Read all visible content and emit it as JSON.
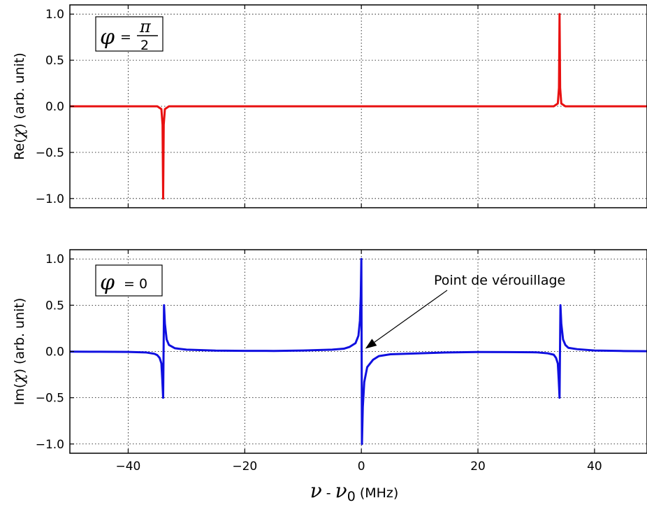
{
  "chart_data": [
    {
      "type": "line",
      "ylabel_prefix": "Re(",
      "ylabel_symbol": "χ",
      "ylabel_suffix": ") (arb. unit)",
      "xlim": [
        -50,
        49
      ],
      "ylim": [
        -1.1,
        1.1
      ],
      "xticks": [
        -40,
        -20,
        0,
        20,
        40
      ],
      "yticks": [
        -1.0,
        -0.5,
        0.0,
        0.5,
        1.0
      ],
      "ytick_labels": [
        "−1.0",
        "−0.5",
        "0.0",
        "0.5",
        "1.0"
      ],
      "grid": true,
      "color": "#e81010",
      "phase_label": {
        "symbol": "φ",
        "equals": "=",
        "numerator": "π",
        "denominator": "2"
      },
      "series": [
        {
          "x": [
            -50,
            -35,
            -34.3,
            -34.1,
            -34.0,
            -33.9,
            -33.7,
            -33,
            33,
            33.7,
            33.9,
            34.0,
            34.1,
            34.3,
            35,
            49
          ],
          "y": [
            0.0,
            0.0,
            -0.03,
            -0.2,
            -1.0,
            -0.2,
            -0.03,
            0.0,
            0.0,
            0.03,
            0.2,
            1.0,
            0.2,
            0.03,
            0.0,
            0.0
          ]
        }
      ]
    },
    {
      "type": "line",
      "ylabel_prefix": "Im(",
      "ylabel_symbol": "χ",
      "ylabel_suffix": ") (arb. unit)",
      "xlim": [
        -50,
        49
      ],
      "ylim": [
        -1.1,
        1.1
      ],
      "xticks": [
        -40,
        -20,
        0,
        20,
        40
      ],
      "xtick_labels": [
        "−40",
        "−20",
        "0",
        "20",
        "40"
      ],
      "yticks": [
        -1.0,
        -0.5,
        0.0,
        0.5,
        1.0
      ],
      "ytick_labels": [
        "−1.0",
        "−0.5",
        "0.0",
        "0.5",
        "1.0"
      ],
      "grid": true,
      "color": "#1010e0",
      "phase_label": {
        "symbol": "φ",
        "equals": "= 0"
      },
      "annotation": {
        "text": "Point de vérouillage",
        "point": [
          0.2,
          0.0
        ]
      },
      "series": [
        {
          "x": [
            -50,
            -45,
            -40,
            -37,
            -35.5,
            -35,
            -34.6,
            -34.3,
            -34.15,
            -34.0,
            -33.85,
            -33.7,
            -33.4,
            -33,
            -32,
            -30,
            -25,
            -20,
            -15,
            -10,
            -5,
            -3,
            -2,
            -1,
            -0.5,
            -0.25,
            -0.1,
            0.0,
            0.1,
            0.25,
            0.5,
            1,
            2,
            3,
            5,
            10,
            15,
            20,
            25,
            30,
            32,
            33,
            33.4,
            33.7,
            33.85,
            34.0,
            34.15,
            34.3,
            34.6,
            35,
            35.5,
            37,
            40,
            45,
            49
          ],
          "y": [
            -0.002,
            -0.003,
            -0.005,
            -0.01,
            -0.025,
            -0.04,
            -0.07,
            -0.13,
            -0.3,
            -0.5,
            0.5,
            0.3,
            0.13,
            0.07,
            0.035,
            0.02,
            0.009,
            0.007,
            0.006,
            0.01,
            0.02,
            0.03,
            0.05,
            0.09,
            0.17,
            0.33,
            0.6,
            1.0,
            -1.0,
            -0.6,
            -0.33,
            -0.17,
            -0.09,
            -0.05,
            -0.03,
            -0.02,
            -0.01,
            -0.006,
            -0.007,
            -0.009,
            -0.02,
            -0.035,
            -0.07,
            -0.13,
            -0.3,
            -0.5,
            0.5,
            0.3,
            0.13,
            0.07,
            0.04,
            0.025,
            0.01,
            0.005,
            0.003
          ]
        }
      ]
    }
  ],
  "xlabel": {
    "nu": "ν",
    "dash": " - ",
    "nu0": "ν",
    "sub": "0",
    "units": " (MHz)"
  }
}
